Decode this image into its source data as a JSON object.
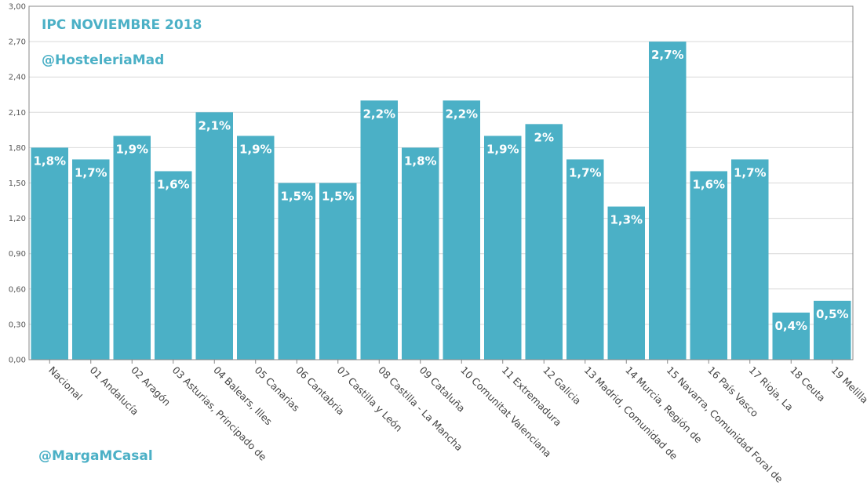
{
  "header": {
    "title": "IPC NOVIEMBRE 2018",
    "handle_top": "@HosteleriaMad",
    "handle_bottom": "@MargaMCasal"
  },
  "colors": {
    "bar": "#4bb0c6",
    "accent_text": "#4bb0c6",
    "grid": "#d9d9d9",
    "frame": "#888888"
  },
  "chart_data": {
    "type": "bar",
    "title": "IPC NOVIEMBRE 2018",
    "xlabel": "",
    "ylabel": "",
    "ylim": [
      0,
      3
    ],
    "yticks": [
      "0,00",
      "0,30",
      "0,60",
      "0,90",
      "1,20",
      "1,50",
      "1,80",
      "2,10",
      "2,40",
      "2,70",
      "3,00"
    ],
    "grid": true,
    "categories": [
      "Nacional",
      "01 Andalucía",
      "02 Aragón",
      "03 Asturias, Principado de",
      "04 Balears, Illes",
      "05 Canarias",
      "06 Cantabria",
      "07 Castilla y León",
      "08 Castilla - La Mancha",
      "09 Cataluña",
      "10 Comunitat Valenciana",
      "11 Extremadura",
      "12 Galicia",
      "13 Madrid, Comunidad de",
      "14 Murcia, Región de",
      "15 Navarra, Comunidad Foral de",
      "16 País Vasco",
      "17 Rioja, La",
      "18 Ceuta",
      "19 Melilla"
    ],
    "values": [
      1.8,
      1.7,
      1.9,
      1.6,
      2.1,
      1.9,
      1.5,
      1.5,
      2.2,
      1.8,
      2.2,
      1.9,
      2.0,
      1.7,
      1.3,
      2.7,
      1.6,
      1.7,
      0.4,
      0.5
    ],
    "data_labels": [
      "1,8%",
      "1,7%",
      "1,9%",
      "1,6%",
      "2,1%",
      "1,9%",
      "1,5%",
      "1,5%",
      "2,2%",
      "1,8%",
      "2,2%",
      "1,9%",
      "2%",
      "1,7%",
      "1,3%",
      "2,7%",
      "1,6%",
      "1,7%",
      "0,4%",
      "0,5%"
    ]
  }
}
